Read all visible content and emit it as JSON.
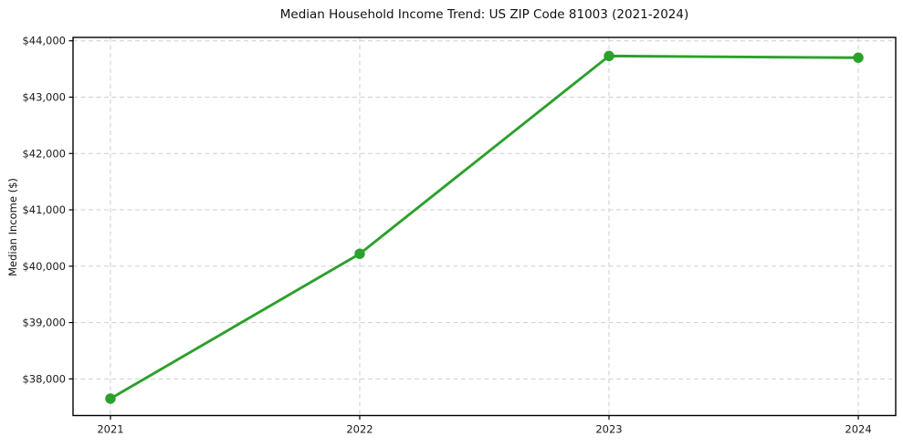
{
  "chart_data": {
    "type": "line",
    "title": "Median Household Income Trend: US ZIP Code 81003 (2021-2024)",
    "xlabel": "",
    "ylabel": "Median Income ($)",
    "x": [
      2021,
      2022,
      2023,
      2024
    ],
    "series": [
      {
        "name": "Median Household Income",
        "values": [
          37650,
          40220,
          43730,
          43700
        ]
      }
    ],
    "xticks": [
      2021,
      2022,
      2023,
      2024
    ],
    "xtick_labels": [
      "2021",
      "2022",
      "2023",
      "2024"
    ],
    "yticks": [
      38000,
      39000,
      40000,
      41000,
      42000,
      43000,
      44000
    ],
    "ytick_labels": [
      "$38,000",
      "$39,000",
      "$40,000",
      "$41,000",
      "$42,000",
      "$43,000",
      "$44,000"
    ],
    "xlim": [
      2020.85,
      2024.15
    ],
    "ylim": [
      37350,
      44060
    ],
    "grid": true,
    "legend": "none",
    "colors": {
      "line": "#2ca02c",
      "marker": "#2ca02c",
      "grid": "#cfcfcf",
      "spine": "#000000",
      "tick_text": "#1a1a1a",
      "background": "#ffffff"
    }
  }
}
